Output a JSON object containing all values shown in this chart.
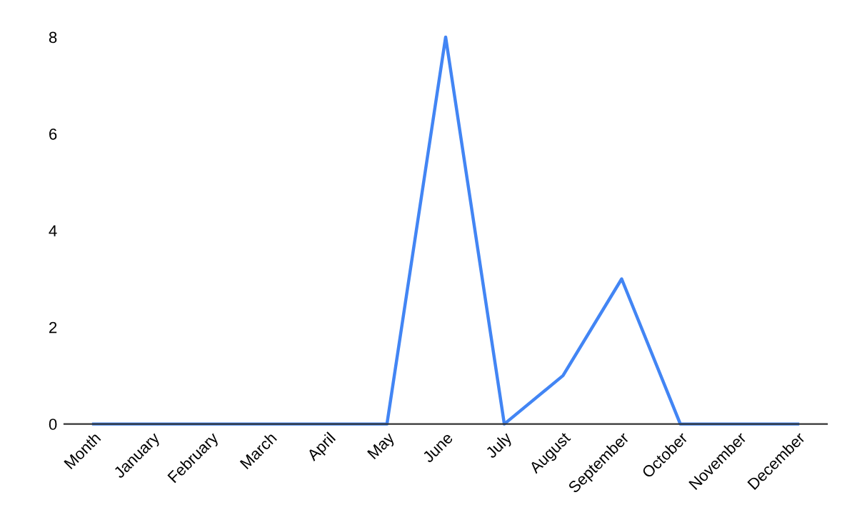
{
  "chart_data": {
    "type": "line",
    "categories": [
      "Month",
      "January",
      "February",
      "March",
      "April",
      "May",
      "June",
      "July",
      "August",
      "September",
      "October",
      "November",
      "December"
    ],
    "series": [
      {
        "color": "#4285f4",
        "values": [
          0,
          0,
          0,
          0,
          0,
          0,
          8,
          0,
          1,
          3,
          0,
          0,
          0
        ]
      }
    ],
    "ylim": [
      0,
      8
    ],
    "yticks": [
      0,
      2,
      4,
      6,
      8
    ],
    "grid": false,
    "legend": false,
    "marker": "none",
    "line_style": "solid"
  }
}
